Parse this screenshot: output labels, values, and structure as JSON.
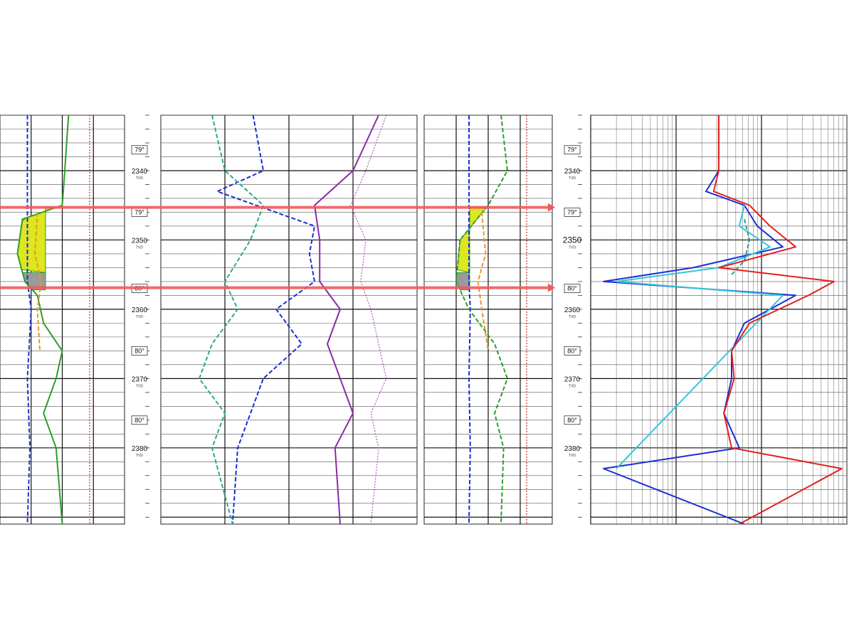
{
  "chart_data": {
    "type": "line",
    "title": "",
    "depth_axis": {
      "unit_label": "TVD",
      "min": 2332,
      "max": 2391,
      "ticks": [
        2340,
        2350,
        2360,
        2370,
        2380
      ]
    },
    "inclination_labels": [
      {
        "depth": 2337,
        "text": "79°"
      },
      {
        "depth": 2346,
        "text": "79°"
      },
      {
        "depth": 2357,
        "text": "80°"
      },
      {
        "depth": 2366,
        "text": "80°"
      },
      {
        "depth": 2376,
        "text": "80°"
      }
    ],
    "zone_markers": [
      {
        "name": "zone-top",
        "depth": 2345.3,
        "color": "#f05a5a"
      },
      {
        "name": "zone-base",
        "depth": 2356.9,
        "color": "#f05a5a"
      }
    ],
    "tracks": [
      {
        "id": "track1",
        "scale": "linear",
        "x_divisions": 4,
        "series": [
          {
            "color": "#1a2fd6",
            "style": "dashed",
            "points": [
              [
                2332,
                0.22
              ],
              [
                2345,
                0.22
              ],
              [
                2356,
                0.22
              ],
              [
                2360,
                0.25
              ],
              [
                2370,
                0.22
              ],
              [
                2380,
                0.24
              ],
              [
                2391,
                0.22
              ]
            ]
          },
          {
            "color": "#2aa02a",
            "style": "solid",
            "points": [
              [
                2332,
                0.55
              ],
              [
                2340,
                0.52
              ],
              [
                2345,
                0.5
              ],
              [
                2347,
                0.18
              ],
              [
                2352,
                0.14
              ],
              [
                2356,
                0.2
              ],
              [
                2358,
                0.3
              ],
              [
                2362,
                0.35
              ],
              [
                2366,
                0.5
              ],
              [
                2370,
                0.45
              ],
              [
                2375,
                0.35
              ],
              [
                2380,
                0.45
              ],
              [
                2391,
                0.5
              ]
            ]
          },
          {
            "color": "#e8962a",
            "style": "dashed",
            "points": [
              [
                2346,
                0.3
              ],
              [
                2352,
                0.28
              ],
              [
                2356,
                0.33
              ],
              [
                2360,
                0.3
              ],
              [
                2366,
                0.32
              ]
            ]
          },
          {
            "color": "#c03030",
            "style": "dotted",
            "points": [
              [
                2332,
                0.72
              ],
              [
                2391,
                0.72
              ]
            ]
          }
        ]
      },
      {
        "id": "track2",
        "scale": "linear",
        "x_divisions": 4,
        "series": [
          {
            "color": "#1a2fd6",
            "style": "dashed",
            "points": [
              [
                2332,
                0.36
              ],
              [
                2340,
                0.4
              ],
              [
                2343,
                0.22
              ],
              [
                2348,
                0.6
              ],
              [
                2352,
                0.58
              ],
              [
                2356,
                0.6
              ],
              [
                2360,
                0.45
              ],
              [
                2365,
                0.55
              ],
              [
                2370,
                0.4
              ],
              [
                2375,
                0.35
              ],
              [
                2380,
                0.3
              ],
              [
                2391,
                0.28
              ]
            ]
          },
          {
            "color": "#2fa88a",
            "style": "dashed",
            "points": [
              [
                2332,
                0.2
              ],
              [
                2340,
                0.25
              ],
              [
                2345,
                0.4
              ],
              [
                2350,
                0.35
              ],
              [
                2356,
                0.25
              ],
              [
                2360,
                0.3
              ],
              [
                2365,
                0.2
              ],
              [
                2370,
                0.15
              ],
              [
                2375,
                0.25
              ],
              [
                2380,
                0.2
              ],
              [
                2391,
                0.28
              ]
            ]
          },
          {
            "color": "#8a2aa8",
            "style": "solid",
            "points": [
              [
                2332,
                0.85
              ],
              [
                2340,
                0.75
              ],
              [
                2345,
                0.6
              ],
              [
                2350,
                0.62
              ],
              [
                2356,
                0.62
              ],
              [
                2360,
                0.7
              ],
              [
                2365,
                0.65
              ],
              [
                2370,
                0.7
              ],
              [
                2375,
                0.75
              ],
              [
                2380,
                0.68
              ],
              [
                2391,
                0.7
              ]
            ]
          },
          {
            "color": "#b050c0",
            "style": "dotted",
            "points": [
              [
                2332,
                0.88
              ],
              [
                2340,
                0.8
              ],
              [
                2345,
                0.74
              ],
              [
                2350,
                0.8
              ],
              [
                2356,
                0.78
              ],
              [
                2360,
                0.82
              ],
              [
                2365,
                0.85
              ],
              [
                2370,
                0.88
              ],
              [
                2375,
                0.82
              ],
              [
                2380,
                0.85
              ],
              [
                2391,
                0.82
              ]
            ]
          }
        ]
      },
      {
        "id": "track3",
        "scale": "linear",
        "x_divisions": 4,
        "series": [
          {
            "color": "#1a2fd6",
            "style": "dashed",
            "points": [
              [
                2332,
                0.35
              ],
              [
                2345,
                0.35
              ],
              [
                2356,
                0.35
              ],
              [
                2360,
                0.36
              ],
              [
                2370,
                0.35
              ],
              [
                2380,
                0.36
              ],
              [
                2391,
                0.35
              ]
            ]
          },
          {
            "color": "#2aa02a",
            "style": "dashed",
            "points": [
              [
                2332,
                0.6
              ],
              [
                2340,
                0.65
              ],
              [
                2345,
                0.5
              ],
              [
                2350,
                0.28
              ],
              [
                2356,
                0.25
              ],
              [
                2360,
                0.35
              ],
              [
                2365,
                0.55
              ],
              [
                2370,
                0.65
              ],
              [
                2375,
                0.55
              ],
              [
                2380,
                0.62
              ],
              [
                2391,
                0.6
              ]
            ]
          },
          {
            "color": "#e8962a",
            "style": "dashed",
            "points": [
              [
                2346,
                0.45
              ],
              [
                2352,
                0.48
              ],
              [
                2356,
                0.42
              ],
              [
                2360,
                0.45
              ],
              [
                2366,
                0.5
              ]
            ]
          },
          {
            "color": "#c03030",
            "style": "dotted",
            "points": [
              [
                2332,
                0.8
              ],
              [
                2391,
                0.8
              ]
            ]
          }
        ]
      },
      {
        "id": "track4",
        "scale": "log",
        "x_decades": 3,
        "series": [
          {
            "color": "#1a2fd6",
            "style": "solid",
            "points": [
              [
                2332,
                0.5
              ],
              [
                2340,
                0.5
              ],
              [
                2343,
                0.45
              ],
              [
                2345,
                0.6
              ],
              [
                2348,
                0.65
              ],
              [
                2351,
                0.75
              ],
              [
                2354,
                0.4
              ],
              [
                2356,
                0.05
              ],
              [
                2358,
                0.8
              ],
              [
                2362,
                0.6
              ],
              [
                2366,
                0.55
              ],
              [
                2370,
                0.55
              ],
              [
                2375,
                0.52
              ],
              [
                2380,
                0.58
              ],
              [
                2383,
                0.05
              ],
              [
                2391,
                0.6
              ]
            ]
          },
          {
            "color": "#33c7d6",
            "style": "solid",
            "points": [
              [
                2345,
                0.6
              ],
              [
                2348,
                0.58
              ],
              [
                2351,
                0.7
              ],
              [
                2354,
                0.5
              ],
              [
                2356,
                0.1
              ],
              [
                2358,
                0.75
              ],
              [
                2383,
                0.1
              ]
            ]
          },
          {
            "color": "#2aa08a",
            "style": "dashed",
            "points": [
              [
                2347,
                0.6
              ],
              [
                2350,
                0.62
              ],
              [
                2353,
                0.6
              ],
              [
                2355,
                0.55
              ]
            ]
          },
          {
            "color": "#e02020",
            "style": "solid",
            "points": [
              [
                2332,
                0.5
              ],
              [
                2340,
                0.5
              ],
              [
                2343,
                0.48
              ],
              [
                2345,
                0.62
              ],
              [
                2348,
                0.7
              ],
              [
                2351,
                0.8
              ],
              [
                2354,
                0.5
              ],
              [
                2356,
                0.95
              ],
              [
                2358,
                0.85
              ],
              [
                2362,
                0.62
              ],
              [
                2366,
                0.55
              ],
              [
                2370,
                0.56
              ],
              [
                2375,
                0.52
              ],
              [
                2380,
                0.55
              ],
              [
                2383,
                0.98
              ],
              [
                2391,
                0.58
              ]
            ]
          }
        ]
      }
    ]
  }
}
